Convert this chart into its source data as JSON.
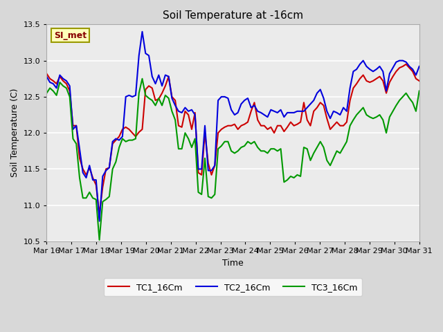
{
  "title": "Soil Temperature at -16cm",
  "xlabel": "Time",
  "ylabel": "Soil Temperature (C)",
  "ylim": [
    10.5,
    13.5
  ],
  "yticks": [
    10.5,
    11.0,
    11.5,
    12.0,
    12.5,
    13.0,
    13.5
  ],
  "xtick_labels": [
    "Mar 16",
    "Mar 17",
    "Mar 18",
    "Mar 19",
    "Mar 20",
    "Mar 21",
    "Mar 22",
    "Mar 23",
    "Mar 24",
    "Mar 25",
    "Mar 26",
    "Mar 27",
    "Mar 28",
    "Mar 29",
    "Mar 30",
    "Mar 31"
  ],
  "legend_labels": [
    "TC1_16Cm",
    "TC2_16Cm",
    "TC3_16Cm"
  ],
  "line_colors": [
    "#cc0000",
    "#0000dd",
    "#009900"
  ],
  "line_width": 1.5,
  "annotation_text": "SI_met",
  "annotation_color": "#880000",
  "annotation_bg": "#ffffbb",
  "annotation_border": "#999900",
  "tc1": [
    12.82,
    12.75,
    12.72,
    12.68,
    12.78,
    12.72,
    12.68,
    12.58,
    12.1,
    12.1,
    11.65,
    11.5,
    11.42,
    11.52,
    11.38,
    11.28,
    10.88,
    11.25,
    11.5,
    11.52,
    11.85,
    11.9,
    11.95,
    12.05,
    12.08,
    12.05,
    12.0,
    11.95,
    12.01,
    12.05,
    12.6,
    12.65,
    12.62,
    12.45,
    12.47,
    12.55,
    12.65,
    12.78,
    12.5,
    12.45,
    12.1,
    12.08,
    12.3,
    12.25,
    12.05,
    12.28,
    11.45,
    11.42,
    12.0,
    11.58,
    11.42,
    11.55,
    12.0,
    12.05,
    12.08,
    12.1,
    12.1,
    12.12,
    12.05,
    12.1,
    12.12,
    12.15,
    12.3,
    12.42,
    12.18,
    12.1,
    12.1,
    12.05,
    12.08,
    12.0,
    12.1,
    12.1,
    12.02,
    12.08,
    12.15,
    12.1,
    12.12,
    12.15,
    12.42,
    12.18,
    12.1,
    12.3,
    12.35,
    12.42,
    12.38,
    12.2,
    12.05,
    12.1,
    12.15,
    12.1,
    12.1,
    12.15,
    12.45,
    12.62,
    12.68,
    12.75,
    12.8,
    12.72,
    12.7,
    12.72,
    12.75,
    12.78,
    12.72,
    12.55,
    12.7,
    12.78,
    12.85,
    12.9,
    12.92,
    12.95,
    12.9,
    12.85,
    12.75,
    12.72
  ],
  "tc2": [
    12.78,
    12.7,
    12.68,
    12.62,
    12.8,
    12.75,
    12.72,
    12.65,
    12.05,
    12.1,
    11.78,
    11.45,
    11.38,
    11.55,
    11.35,
    11.35,
    10.78,
    11.4,
    11.48,
    11.52,
    11.88,
    11.92,
    11.9,
    11.95,
    12.5,
    12.52,
    12.5,
    12.52,
    13.07,
    13.4,
    13.1,
    13.07,
    12.78,
    12.68,
    12.8,
    12.65,
    12.8,
    12.78,
    12.48,
    12.38,
    12.3,
    12.28,
    12.35,
    12.3,
    12.32,
    12.25,
    11.5,
    11.5,
    12.1,
    11.48,
    11.48,
    11.55,
    12.45,
    12.5,
    12.5,
    12.48,
    12.32,
    12.25,
    12.28,
    12.4,
    12.45,
    12.48,
    12.35,
    12.38,
    12.3,
    12.28,
    12.25,
    12.22,
    12.32,
    12.3,
    12.28,
    12.32,
    12.22,
    12.28,
    12.28,
    12.28,
    12.3,
    12.3,
    12.3,
    12.35,
    12.4,
    12.45,
    12.55,
    12.6,
    12.48,
    12.3,
    12.2,
    12.3,
    12.28,
    12.25,
    12.35,
    12.3,
    12.62,
    12.85,
    12.88,
    12.95,
    13.0,
    12.92,
    12.88,
    12.85,
    12.88,
    12.92,
    12.85,
    12.58,
    12.82,
    12.9,
    12.98,
    13.0,
    13.0,
    12.98,
    12.92,
    12.88,
    12.8,
    12.92
  ],
  "tc3": [
    12.55,
    12.62,
    12.58,
    12.52,
    12.7,
    12.65,
    12.62,
    12.5,
    11.92,
    11.85,
    11.38,
    11.1,
    11.1,
    11.18,
    11.1,
    11.08,
    10.52,
    11.05,
    11.08,
    11.12,
    11.5,
    11.6,
    11.8,
    11.92,
    11.88,
    11.9,
    11.9,
    11.92,
    12.55,
    12.75,
    12.52,
    12.48,
    12.45,
    12.38,
    12.48,
    12.38,
    12.52,
    12.48,
    12.3,
    12.18,
    11.78,
    11.78,
    12.0,
    11.92,
    11.8,
    11.92,
    11.18,
    11.15,
    11.65,
    11.12,
    11.1,
    11.15,
    11.78,
    11.82,
    11.88,
    11.88,
    11.75,
    11.72,
    11.75,
    11.8,
    11.82,
    11.88,
    11.85,
    11.88,
    11.8,
    11.75,
    11.75,
    11.72,
    11.78,
    11.78,
    11.75,
    11.78,
    11.32,
    11.35,
    11.4,
    11.38,
    11.42,
    11.4,
    11.8,
    11.78,
    11.62,
    11.72,
    11.8,
    11.88,
    11.8,
    11.62,
    11.55,
    11.65,
    11.75,
    11.72,
    11.8,
    11.88,
    12.1,
    12.18,
    12.25,
    12.3,
    12.35,
    12.25,
    12.22,
    12.2,
    12.22,
    12.25,
    12.18,
    12.0,
    12.22,
    12.3,
    12.38,
    12.45,
    12.5,
    12.55,
    12.48,
    12.42,
    12.3,
    12.58
  ]
}
